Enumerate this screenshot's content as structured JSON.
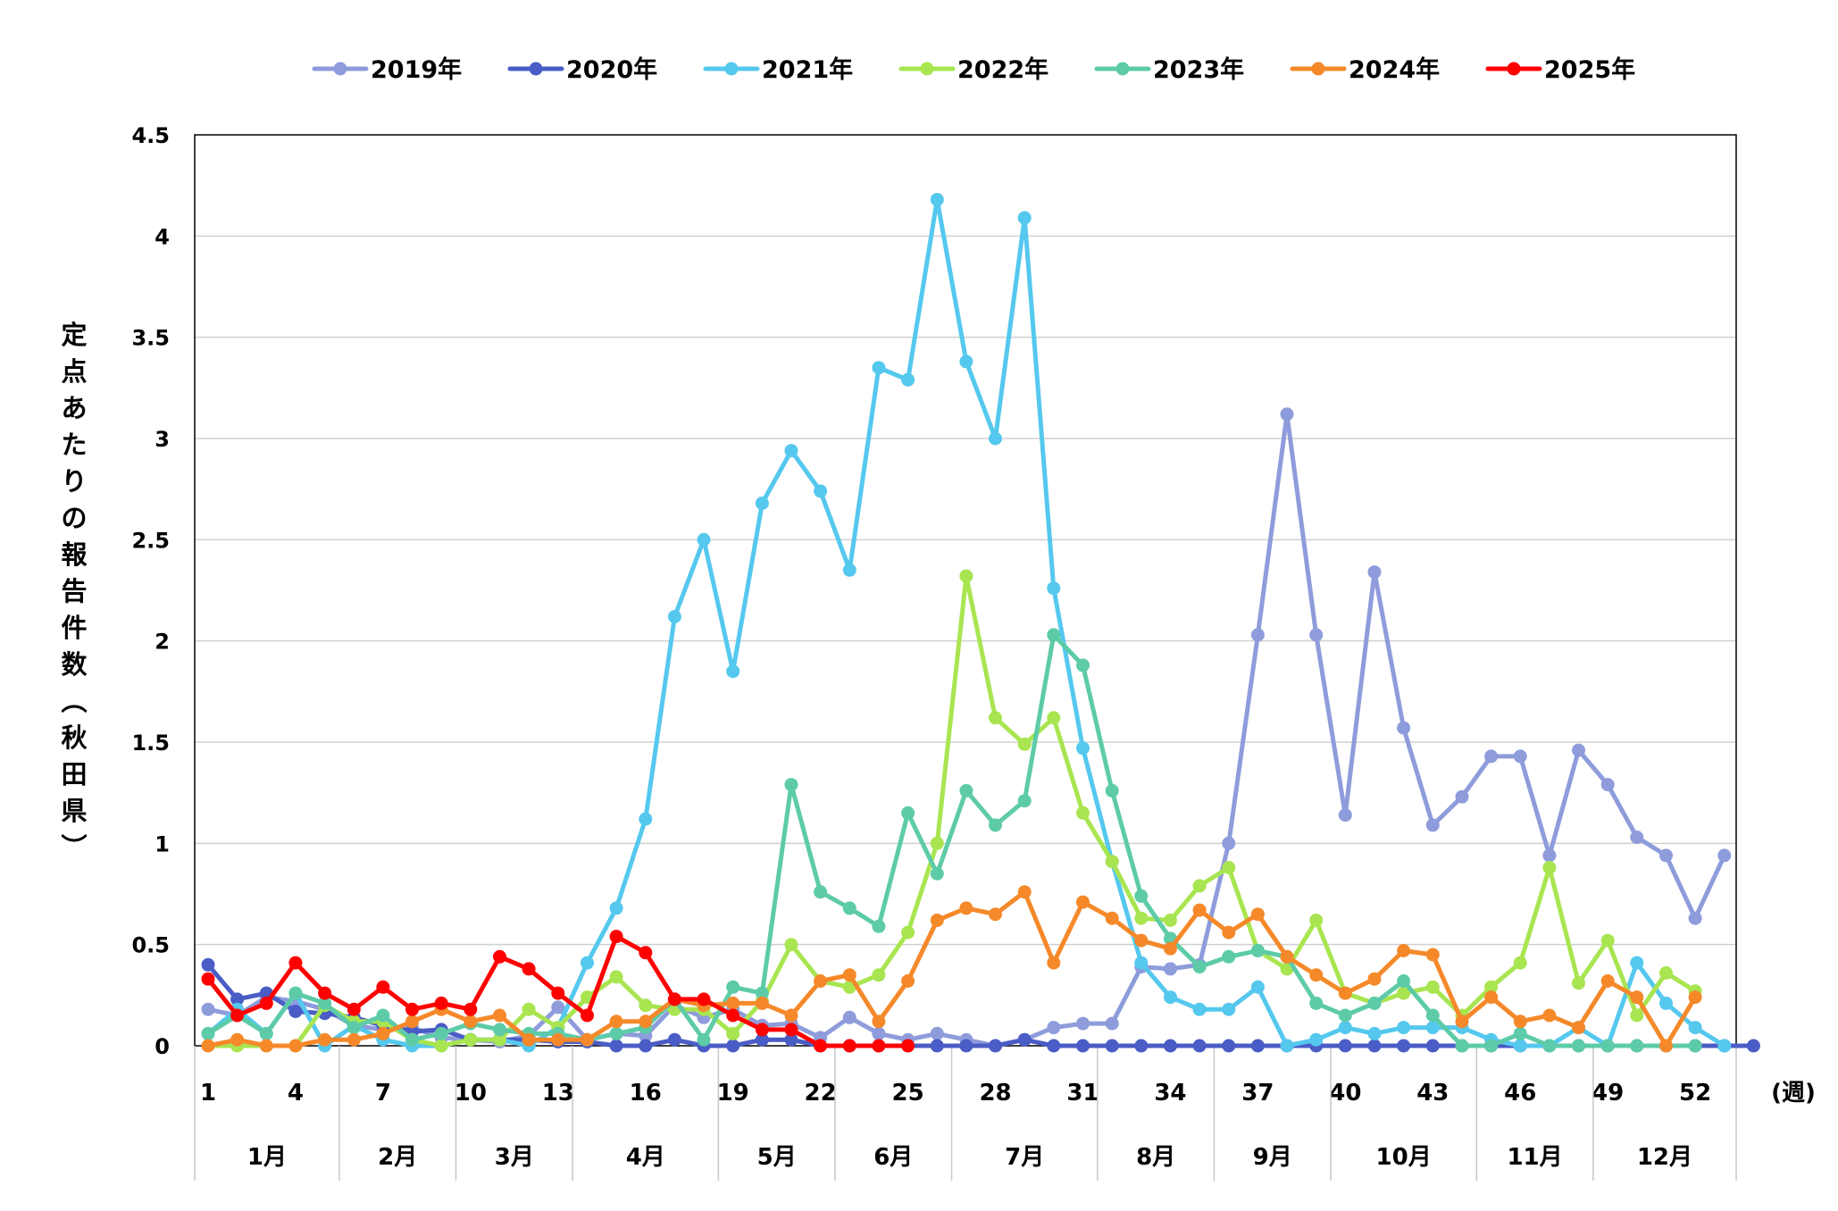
{
  "chart_data": {
    "type": "line",
    "title": "",
    "ylabel": "定点あたりの報告件数（秋田県）",
    "xlabel": "(週)",
    "ylim": [
      0,
      4.5
    ],
    "yticks": [
      "0",
      "0.5",
      "1",
      "1.5",
      "2",
      "2.5",
      "3",
      "3.5",
      "4",
      "4.5"
    ],
    "xtick_labels": [
      "1",
      "4",
      "7",
      "10",
      "13",
      "16",
      "19",
      "22",
      "25",
      "28",
      "31",
      "34",
      "37",
      "40",
      "43",
      "46",
      "49",
      "52"
    ],
    "xtick_weeks": [
      1,
      4,
      7,
      10,
      13,
      16,
      19,
      22,
      25,
      28,
      31,
      34,
      37,
      40,
      43,
      46,
      49,
      52
    ],
    "months": [
      {
        "label": "1月",
        "start": 1,
        "end": 5
      },
      {
        "label": "2月",
        "start": 6,
        "end": 9
      },
      {
        "label": "3月",
        "start": 10,
        "end": 13
      },
      {
        "label": "4月",
        "start": 14,
        "end": 18
      },
      {
        "label": "5月",
        "start": 19,
        "end": 22
      },
      {
        "label": "6月",
        "start": 23,
        "end": 26
      },
      {
        "label": "7月",
        "start": 27,
        "end": 31
      },
      {
        "label": "8月",
        "start": 32,
        "end": 35
      },
      {
        "label": "9月",
        "start": 36,
        "end": 39
      },
      {
        "label": "10月",
        "start": 40,
        "end": 44
      },
      {
        "label": "11月",
        "start": 45,
        "end": 48
      },
      {
        "label": "12月",
        "start": 49,
        "end": 53
      }
    ],
    "grid": true,
    "legend": "top",
    "series": [
      {
        "name": "2019年",
        "color": "#8E9CDB",
        "start_week": 1,
        "values": [
          0.18,
          0.15,
          0.24,
          0.22,
          0.18,
          0.1,
          0.08,
          0.09,
          0.04,
          0.03,
          0.02,
          0.05,
          0.19,
          0.03,
          0.06,
          0.05,
          0.2,
          0.14,
          0.18,
          0.1,
          0.11,
          0.04,
          0.14,
          0.06,
          0.03,
          0.06,
          0.03,
          0,
          0.03,
          0.09,
          0.11,
          0.11,
          0.39,
          0.38,
          0.4,
          1.0,
          2.03,
          3.12,
          2.03,
          1.14,
          2.34,
          1.57,
          1.09,
          1.23,
          1.43,
          1.43,
          0.94,
          1.46,
          1.29,
          1.03,
          0.94,
          0.63,
          0.94
        ]
      },
      {
        "name": "2020年",
        "color": "#4A5CC5",
        "start_week": 1,
        "values": [
          0.4,
          0.23,
          0.26,
          0.17,
          0.16,
          0.14,
          0.1,
          0.07,
          0.08,
          0.03,
          0.03,
          0.03,
          0.02,
          0.02,
          0,
          0,
          0.03,
          0,
          0,
          0.03,
          0.03,
          0,
          0,
          0,
          0,
          0,
          0,
          0,
          0.03,
          0,
          0,
          0,
          0,
          0,
          0,
          0,
          0,
          0,
          0,
          0,
          0,
          0,
          0,
          0,
          0,
          0,
          0,
          0,
          0,
          0,
          0,
          0,
          0,
          0
        ]
      },
      {
        "name": "2021年",
        "color": "#55C8EE",
        "start_week": 1,
        "values": [
          0.06,
          0.18,
          0.06,
          0.26,
          0,
          0.1,
          0.03,
          0,
          0,
          0.03,
          0.03,
          0,
          0.09,
          0.41,
          0.68,
          1.12,
          2.12,
          2.5,
          1.85,
          2.68,
          2.94,
          2.74,
          2.35,
          3.35,
          3.29,
          4.18,
          3.38,
          3.0,
          4.09,
          2.26,
          1.47,
          0.91,
          0.41,
          0.24,
          0.18,
          0.18,
          0.29,
          0,
          0.03,
          0.09,
          0.06,
          0.09,
          0.09,
          0.09,
          0.03,
          0,
          0,
          0.09,
          0,
          0.41,
          0.21,
          0.09,
          0
        ]
      },
      {
        "name": "2022年",
        "color": "#A8E550",
        "start_week": 1,
        "values": [
          0,
          0,
          0,
          0,
          0.2,
          0.12,
          0.12,
          0.03,
          0,
          0.03,
          0.03,
          0.18,
          0.09,
          0.24,
          0.34,
          0.2,
          0.18,
          0.18,
          0.06,
          0.22,
          0.5,
          0.32,
          0.29,
          0.35,
          0.56,
          1.0,
          2.32,
          1.62,
          1.49,
          1.62,
          1.15,
          0.91,
          0.63,
          0.62,
          0.79,
          0.88,
          0.47,
          0.38,
          0.62,
          0.26,
          0.21,
          0.26,
          0.29,
          0.15,
          0.29,
          0.41,
          0.88,
          0.31,
          0.52,
          0.15,
          0.36,
          0.27
        ]
      },
      {
        "name": "2023年",
        "color": "#5DCBA8",
        "start_week": 1,
        "values": [
          0.06,
          0.15,
          0.06,
          0.26,
          0.21,
          0.09,
          0.15,
          0.03,
          0.06,
          0.11,
          0.08,
          0.06,
          0.06,
          0.03,
          0.06,
          0.09,
          0.23,
          0.03,
          0.29,
          0.26,
          1.29,
          0.76,
          0.68,
          0.59,
          1.15,
          0.85,
          1.26,
          1.09,
          1.21,
          2.03,
          1.88,
          1.26,
          0.74,
          0.53,
          0.39,
          0.44,
          0.47,
          0.44,
          0.21,
          0.15,
          0.21,
          0.32,
          0.15,
          0,
          0,
          0.06,
          0,
          0,
          0,
          0,
          0,
          0
        ]
      },
      {
        "name": "2024年",
        "color": "#F5892A",
        "start_week": 1,
        "values": [
          0,
          0.03,
          0,
          0,
          0.03,
          0.03,
          0.06,
          0.12,
          0.18,
          0.12,
          0.15,
          0.03,
          0.03,
          0.03,
          0.12,
          0.12,
          0.23,
          0.2,
          0.21,
          0.21,
          0.15,
          0.32,
          0.35,
          0.12,
          0.32,
          0.62,
          0.68,
          0.65,
          0.76,
          0.41,
          0.71,
          0.63,
          0.52,
          0.48,
          0.67,
          0.56,
          0.65,
          0.44,
          0.35,
          0.26,
          0.33,
          0.47,
          0.45,
          0.12,
          0.24,
          0.12,
          0.15,
          0.09,
          0.32,
          0.24,
          0,
          0.24
        ]
      },
      {
        "name": "2025年",
        "color": "#FF0000",
        "start_week": 1,
        "values": [
          0.33,
          0.15,
          0.21,
          0.41,
          0.26,
          0.18,
          0.29,
          0.18,
          0.21,
          0.18,
          0.44,
          0.38,
          0.26,
          0.15,
          0.54,
          0.46,
          0.23,
          0.23,
          0.15,
          0.08,
          0.08,
          0,
          0,
          0,
          0
        ]
      }
    ]
  }
}
